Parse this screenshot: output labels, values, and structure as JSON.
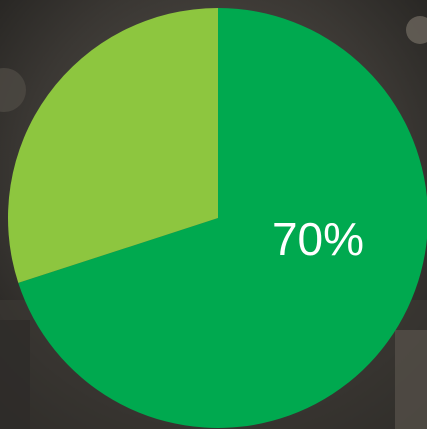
{
  "chart_data": {
    "type": "pie",
    "slices": [
      {
        "value": 70,
        "color": "#00a94f",
        "label": "70%"
      },
      {
        "value": 30,
        "color": "#8dc63f"
      }
    ]
  }
}
